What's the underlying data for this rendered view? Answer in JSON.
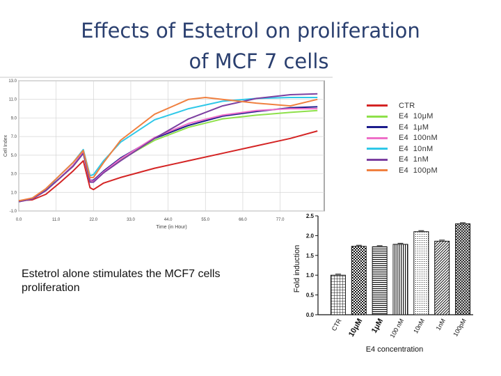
{
  "title": {
    "line1": "Effects of Estetrol   on proliferation",
    "line2": "of MCF 7  cells"
  },
  "note": "Estetrol alone stimulates the MCF7 cells proliferation",
  "chart_data": [
    {
      "type": "line",
      "title": "",
      "xlabel": "Time (in Hour)",
      "ylabel": "Cell Index",
      "xlim": [
        0,
        90
      ],
      "ylim": [
        -1,
        13
      ],
      "x_ticks": [
        "0.0",
        "11.0",
        "22.0",
        "33.0",
        "44.0",
        "55.0",
        "66.0",
        "77.0"
      ],
      "x_tick_values": [
        0,
        11,
        22,
        33,
        44,
        55,
        66,
        77
      ],
      "y_ticks": [
        "-1.0",
        "1.0",
        "3.0",
        "5.0",
        "7.0",
        "9.0",
        "11.0",
        "13.0"
      ],
      "y_tick_values": [
        -1,
        1,
        3,
        5,
        7,
        9,
        11,
        13
      ],
      "grid": true,
      "legend_position": "right",
      "series": [
        {
          "name": "CTR",
          "color": "#d42424",
          "x": [
            0,
            4,
            8,
            12,
            16,
            19,
            21,
            22,
            25,
            30,
            40,
            50,
            60,
            70,
            80,
            88
          ],
          "y": [
            0.1,
            0.2,
            0.8,
            2.0,
            3.3,
            4.4,
            1.5,
            1.3,
            2.0,
            2.6,
            3.6,
            4.4,
            5.2,
            6.0,
            6.8,
            7.6
          ]
        },
        {
          "name": "E4  10μM",
          "color": "#8ee04a",
          "x": [
            0,
            4,
            8,
            12,
            16,
            19,
            21,
            22,
            25,
            30,
            40,
            50,
            60,
            70,
            80,
            88
          ],
          "y": [
            0.0,
            0.3,
            1.2,
            2.5,
            3.8,
            5.2,
            2.2,
            2.2,
            3.2,
            4.5,
            6.6,
            8.0,
            8.9,
            9.3,
            9.6,
            9.8
          ]
        },
        {
          "name": "E4  1μM",
          "color": "#1c1c8c",
          "x": [
            0,
            4,
            8,
            12,
            16,
            19,
            21,
            22,
            25,
            30,
            40,
            50,
            60,
            70,
            80,
            88
          ],
          "y": [
            0.0,
            0.3,
            1.2,
            2.5,
            3.9,
            5.3,
            2.3,
            2.3,
            3.3,
            4.7,
            6.8,
            8.2,
            9.2,
            9.7,
            10.1,
            10.2
          ]
        },
        {
          "name": "E4  100nM",
          "color": "#ee6fc8",
          "x": [
            0,
            4,
            8,
            12,
            16,
            19,
            21,
            22,
            25,
            30,
            40,
            50,
            60,
            70,
            80,
            88
          ],
          "y": [
            0.0,
            0.3,
            1.2,
            2.5,
            3.9,
            5.3,
            2.3,
            2.2,
            3.2,
            4.6,
            6.9,
            8.4,
            9.3,
            9.8,
            10.0,
            10.0
          ]
        },
        {
          "name": "E4  10nM",
          "color": "#2fc8e8",
          "x": [
            0,
            4,
            8,
            12,
            16,
            19,
            21,
            22,
            25,
            30,
            40,
            50,
            60,
            70,
            80,
            88
          ],
          "y": [
            0.0,
            0.4,
            1.3,
            2.8,
            4.2,
            5.6,
            2.8,
            2.9,
            4.4,
            6.4,
            8.8,
            10.0,
            10.8,
            11.1,
            11.2,
            11.2
          ]
        },
        {
          "name": "E4  1nM",
          "color": "#7b3fa0",
          "x": [
            0,
            4,
            8,
            12,
            16,
            19,
            21,
            22,
            25,
            30,
            40,
            50,
            60,
            70,
            80,
            88
          ],
          "y": [
            0.0,
            0.3,
            1.2,
            2.5,
            3.8,
            5.2,
            2.1,
            2.1,
            3.1,
            4.4,
            6.8,
            8.9,
            10.3,
            11.1,
            11.5,
            11.6
          ]
        },
        {
          "name": "E4  100pM",
          "color": "#f08040",
          "x": [
            0,
            4,
            8,
            12,
            16,
            19,
            21,
            22,
            25,
            30,
            40,
            50,
            55,
            60,
            70,
            80,
            88
          ],
          "y": [
            0.1,
            0.4,
            1.4,
            2.8,
            4.2,
            5.5,
            2.6,
            2.6,
            4.2,
            6.6,
            9.4,
            11.0,
            11.2,
            11.0,
            10.6,
            10.3,
            11.0
          ]
        }
      ]
    },
    {
      "type": "bar",
      "title": "",
      "xlabel": "E4 concentration",
      "ylabel": "Fold induction",
      "ylim": [
        0,
        2.5
      ],
      "y_ticks": [
        "0.0",
        "0.5",
        "1.0",
        "1.5",
        "2.0",
        "2.5"
      ],
      "y_tick_values": [
        0,
        0.5,
        1,
        1.5,
        2,
        2.5
      ],
      "categories": [
        "CTR",
        "10μM",
        "1μM",
        "100 nM",
        "10nM",
        "1nM",
        "100pM"
      ],
      "bold_categories": [
        false,
        true,
        true,
        false,
        false,
        false,
        false
      ],
      "values": [
        1.0,
        1.73,
        1.72,
        1.78,
        2.1,
        1.86,
        2.3
      ],
      "patterns": [
        "grid",
        "checker",
        "hstripes",
        "vstripes",
        "dots",
        "diagonal",
        "crosshatch"
      ]
    }
  ]
}
